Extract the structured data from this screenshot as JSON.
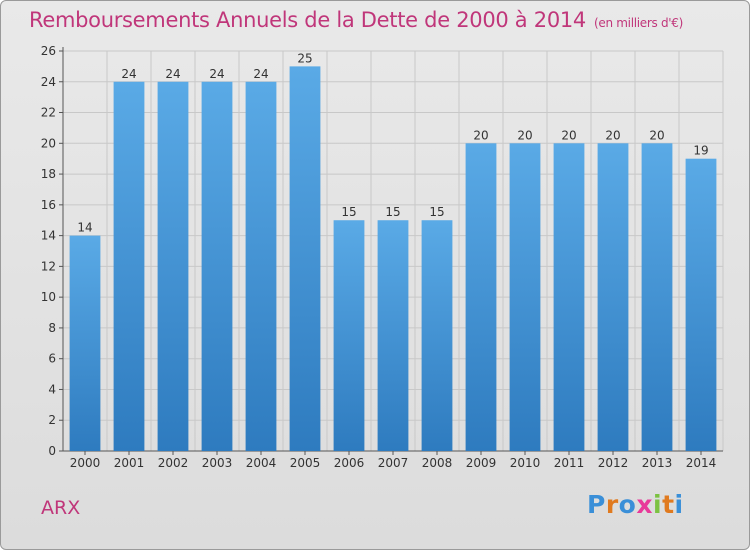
{
  "header": {
    "title": "Remboursements Annuels de la Dette de 2000 à 2014",
    "unit": "(en milliers d'€)"
  },
  "footer": {
    "commune": "ARX",
    "logo_text": "Proxiti"
  },
  "colors": {
    "title": "#c0367a",
    "bar_top": "#5aaae6",
    "bar_bottom": "#2e7bbf",
    "grid": "#c8c8c8"
  },
  "chart_data": {
    "type": "bar",
    "title": "Remboursements Annuels de la Dette de 2000 à 2014",
    "categories": [
      "2000",
      "2001",
      "2002",
      "2003",
      "2004",
      "2005",
      "2006",
      "2007",
      "2008",
      "2009",
      "2010",
      "2011",
      "2012",
      "2013",
      "2014"
    ],
    "series": [
      {
        "values": [
          14,
          24,
          24,
          24,
          24,
          25,
          15,
          15,
          15,
          20,
          20,
          20,
          20,
          20,
          19
        ]
      }
    ],
    "ylim": [
      0,
      26
    ],
    "yticks": [
      0,
      2,
      4,
      6,
      8,
      10,
      12,
      14,
      16,
      18,
      20,
      22,
      24,
      26
    ],
    "grid": true,
    "data_labels": true,
    "xlabel": "",
    "ylabel": ""
  }
}
